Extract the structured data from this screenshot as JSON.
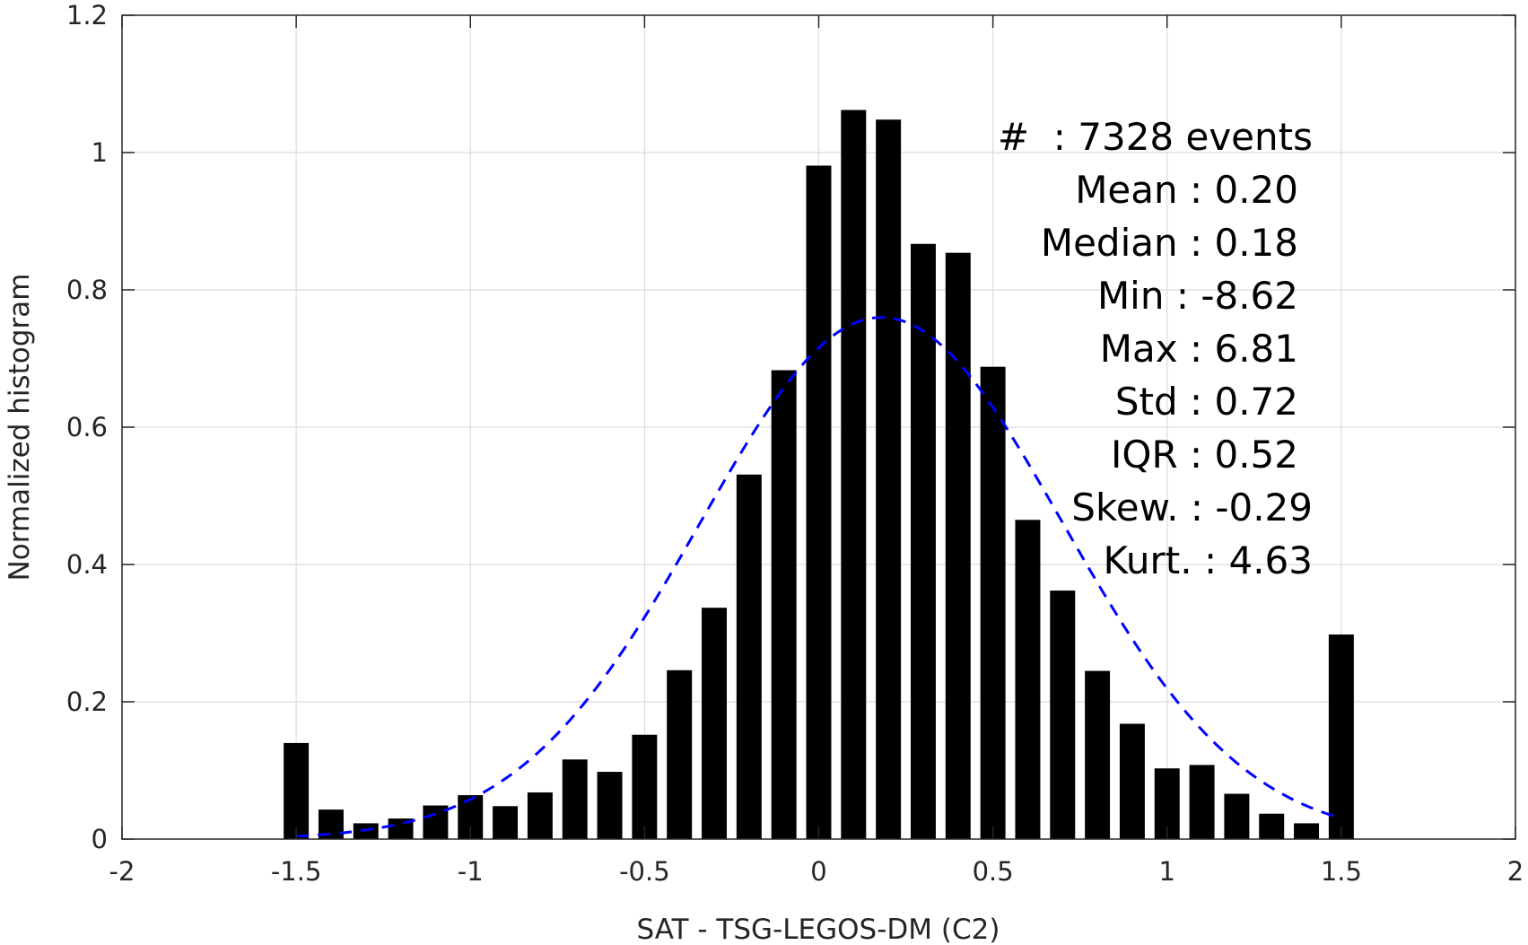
{
  "chart_data": {
    "type": "bar",
    "xlabel": "SAT - TSG-LEGOS-DM (C2)",
    "ylabel": "Normalized histogram",
    "xlim": [
      -2,
      2
    ],
    "ylim": [
      0,
      1.2
    ],
    "x_ticks": [
      "-2",
      "-1.5",
      "-1",
      "-0.5",
      "0",
      "0.5",
      "1",
      "1.5",
      "2"
    ],
    "y_ticks": [
      "0",
      "0.2",
      "0.4",
      "0.6",
      "0.8",
      "1",
      "1.2"
    ],
    "grid": true,
    "bins": [
      {
        "x": -1.5,
        "value": 0.14
      },
      {
        "x": -1.4,
        "value": 0.043
      },
      {
        "x": -1.3,
        "value": 0.023
      },
      {
        "x": -1.2,
        "value": 0.03
      },
      {
        "x": -1.1,
        "value": 0.049
      },
      {
        "x": -1.0,
        "value": 0.064
      },
      {
        "x": -0.9,
        "value": 0.048
      },
      {
        "x": -0.8,
        "value": 0.068
      },
      {
        "x": -0.7,
        "value": 0.116
      },
      {
        "x": -0.6,
        "value": 0.098
      },
      {
        "x": -0.5,
        "value": 0.152
      },
      {
        "x": -0.4,
        "value": 0.246
      },
      {
        "x": -0.3,
        "value": 0.337
      },
      {
        "x": -0.2,
        "value": 0.531
      },
      {
        "x": -0.1,
        "value": 0.683
      },
      {
        "x": 0.0,
        "value": 0.981
      },
      {
        "x": 0.1,
        "value": 1.062
      },
      {
        "x": 0.2,
        "value": 1.048
      },
      {
        "x": 0.3,
        "value": 0.867
      },
      {
        "x": 0.4,
        "value": 0.854
      },
      {
        "x": 0.5,
        "value": 0.688
      },
      {
        "x": 0.6,
        "value": 0.465
      },
      {
        "x": 0.7,
        "value": 0.362
      },
      {
        "x": 0.8,
        "value": 0.245
      },
      {
        "x": 0.9,
        "value": 0.168
      },
      {
        "x": 1.0,
        "value": 0.103
      },
      {
        "x": 1.1,
        "value": 0.108
      },
      {
        "x": 1.2,
        "value": 0.066
      },
      {
        "x": 1.3,
        "value": 0.037
      },
      {
        "x": 1.4,
        "value": 0.023
      },
      {
        "x": 1.5,
        "value": 0.298
      }
    ],
    "fit_curve": {
      "style": "dashed",
      "color": "#0000ff",
      "mean": 0.18,
      "sigma": 0.52,
      "peak": 0.76,
      "x_range": [
        -1.5,
        1.5
      ]
    },
    "bar_color": "#000000",
    "annotations": [
      "#  : 7328 events",
      "Mean : 0.20",
      "Median : 0.18",
      "Min : -8.62",
      "Max : 6.81",
      "Std : 0.72",
      "IQR : 0.52",
      "Skew. : -0.29",
      "Kurt. : 4.63"
    ]
  }
}
